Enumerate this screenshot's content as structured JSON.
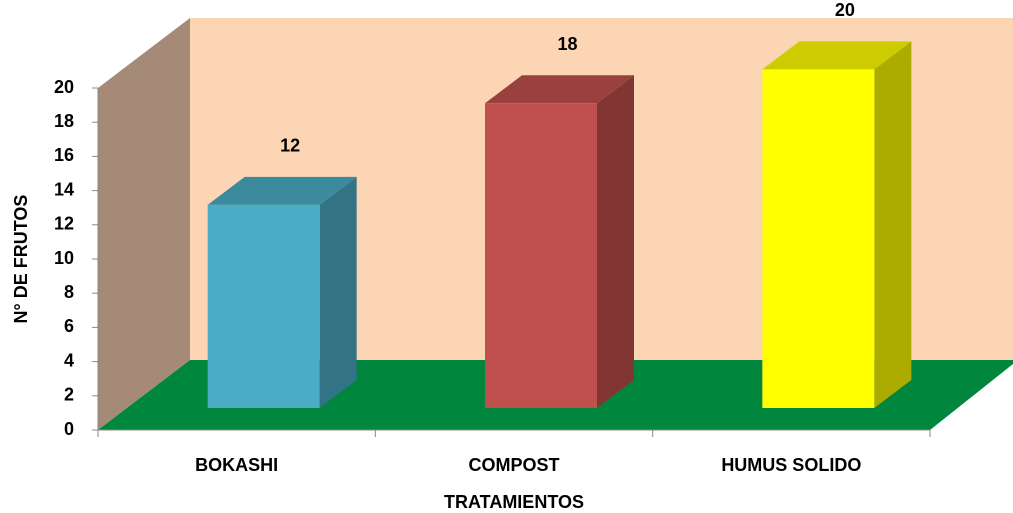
{
  "chart_data": {
    "type": "bar3d",
    "x_label": "TRATAMIENTOS",
    "y_label": "N° DE FRUTOS",
    "categories": [
      "BOKASHI",
      "COMPOST",
      "HUMUS SOLIDO"
    ],
    "values": [
      12,
      18,
      20
    ],
    "colors": [
      "#4BACC6",
      "#C0504D",
      "#FFFF00"
    ],
    "ylim": [
      0,
      20
    ],
    "yticks": [
      0,
      2,
      4,
      6,
      8,
      10,
      12,
      14,
      16,
      18,
      20
    ]
  }
}
